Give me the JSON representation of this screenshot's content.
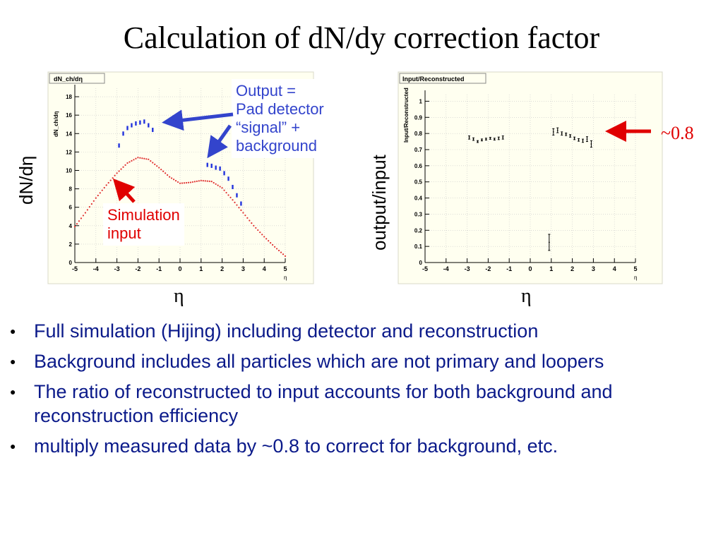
{
  "slide": {
    "title": "Calculation of dN/dy correction factor",
    "left_side_label": "dN/dη",
    "right_side_label": "output/input",
    "left_eta_label": "η",
    "right_eta_label": "η",
    "callout_output": [
      "Output =",
      "Pad detector",
      "“signal” +",
      "background"
    ],
    "callout_sim": [
      "Simulation",
      "input"
    ],
    "annotation_08": "~0.8",
    "bullets": [
      "Full simulation (Hijing) including detector and reconstruction",
      "Background includes all particles which are not primary and loopers",
      "The ratio of reconstructed to input accounts for both background and reconstruction efficiency",
      "multiply measured data by ~0.8 to correct for background, etc."
    ],
    "colors": {
      "callout_blue": "#3344cc",
      "callout_red": "#e00000",
      "bullet_text": "#0b1a8a"
    }
  },
  "chart_data": [
    {
      "type": "scatter",
      "title": "dN_ch/dη",
      "ylabel": "dN_ch/dη",
      "xlabel": "η",
      "xlim": [
        -5,
        5
      ],
      "ylim": [
        0,
        19
      ],
      "x_ticks": [
        "-5",
        "-4",
        "-3",
        "-2",
        "-1",
        "0",
        "1",
        "2",
        "3",
        "4",
        "5"
      ],
      "y_ticks": [
        "0",
        "2",
        "4",
        "6",
        "8",
        "10",
        "12",
        "14",
        "16",
        "18"
      ],
      "grid": true,
      "series": [
        {
          "color": "#2233dd",
          "style": "markers",
          "x": [
            -2.9,
            -2.7,
            -2.5,
            -2.3,
            -2.1,
            -1.9,
            -1.7,
            -1.5,
            -1.3,
            1.3,
            1.5,
            1.7,
            1.9,
            2.1,
            2.3,
            2.5,
            2.7,
            2.9
          ],
          "y": [
            12.7,
            14.0,
            14.6,
            14.9,
            15.1,
            15.2,
            15.3,
            14.9,
            14.4,
            10.6,
            10.5,
            10.3,
            10.2,
            9.7,
            9.1,
            8.2,
            7.3,
            6.4
          ]
        },
        {
          "color": "#e03030",
          "style": "dotted",
          "x": [
            -5.0,
            -4.5,
            -4.0,
            -3.5,
            -3.0,
            -2.5,
            -2.0,
            -1.5,
            -1.0,
            -0.5,
            0.0,
            0.5,
            1.0,
            1.5,
            2.0,
            2.5,
            3.0,
            3.5,
            4.0,
            4.5,
            5.0
          ],
          "y": [
            3.9,
            5.4,
            7.0,
            8.4,
            9.7,
            10.8,
            11.4,
            11.2,
            10.3,
            9.3,
            8.6,
            8.7,
            8.9,
            8.8,
            8.1,
            6.8,
            5.4,
            4.0,
            2.8,
            1.7,
            0.7
          ]
        }
      ]
    },
    {
      "type": "scatter",
      "title": "Input/Reconstructed",
      "ylabel": "Input/Reconstructed",
      "xlabel": "η",
      "xlim": [
        -5,
        5
      ],
      "ylim": [
        0,
        1.05
      ],
      "x_ticks": [
        "-5",
        "-4",
        "-3",
        "-2",
        "-1",
        "0",
        "1",
        "2",
        "3",
        "4",
        "5"
      ],
      "y_ticks": [
        "0",
        "0.1",
        "0.2",
        "0.3",
        "0.4",
        "0.5",
        "0.6",
        "0.7",
        "0.8",
        "0.9",
        "1"
      ],
      "grid": true,
      "series": [
        {
          "color": "#000000",
          "style": "errorbars",
          "x": [
            -2.9,
            -2.7,
            -2.5,
            -2.3,
            -2.1,
            -1.9,
            -1.7,
            -1.5,
            -1.3,
            0.9,
            1.1,
            1.3,
            1.5,
            1.7,
            1.9,
            2.1,
            2.3,
            2.5,
            2.7,
            2.9
          ],
          "y": [
            0.775,
            0.765,
            0.75,
            0.76,
            0.765,
            0.77,
            0.765,
            0.77,
            0.775,
            0.125,
            0.81,
            0.82,
            0.8,
            0.795,
            0.785,
            0.77,
            0.76,
            0.755,
            0.765,
            0.735
          ],
          "err": [
            0.01,
            0.008,
            0.006,
            0.006,
            0.006,
            0.006,
            0.006,
            0.008,
            0.01,
            0.05,
            0.02,
            0.015,
            0.01,
            0.008,
            0.008,
            0.008,
            0.008,
            0.01,
            0.015,
            0.02
          ]
        }
      ]
    }
  ]
}
